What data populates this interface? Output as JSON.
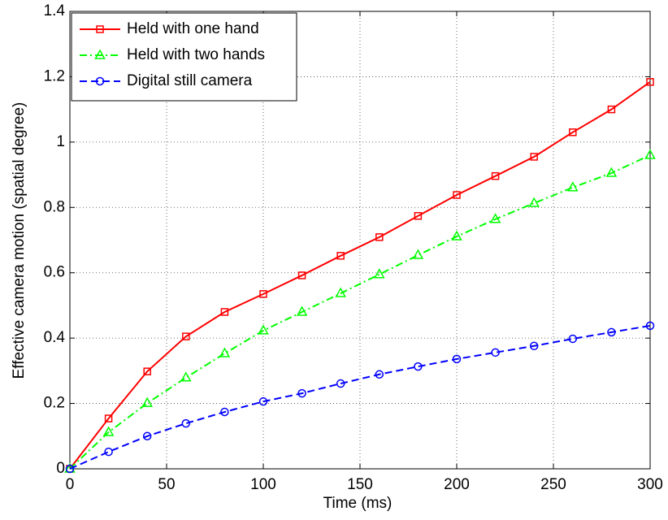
{
  "chart_data": {
    "type": "line",
    "x_label": "Time (ms)",
    "y_label": "Effective camera motion (spatial degree)",
    "x": [
      0,
      20,
      40,
      60,
      80,
      100,
      120,
      140,
      160,
      180,
      200,
      220,
      240,
      260,
      280,
      300
    ],
    "series": [
      {
        "name": "Held with one hand",
        "color": "#ff0000",
        "marker": "square",
        "dash": "solid",
        "values": [
          0,
          0.154,
          0.298,
          0.405,
          0.48,
          0.535,
          0.592,
          0.652,
          0.709,
          0.774,
          0.838,
          0.896,
          0.955,
          1.03,
          1.1,
          1.184
        ]
      },
      {
        "name": "Held with two hands",
        "color": "#00ff00",
        "marker": "triangle",
        "dash": "dashdot",
        "values": [
          0,
          0.112,
          0.201,
          0.279,
          0.353,
          0.423,
          0.48,
          0.537,
          0.595,
          0.654,
          0.711,
          0.764,
          0.813,
          0.861,
          0.905,
          0.96
        ]
      },
      {
        "name": "Digital still camera",
        "color": "#0000ff",
        "marker": "circle",
        "dash": "dashed",
        "values": [
          0,
          0.052,
          0.1,
          0.139,
          0.174,
          0.206,
          0.231,
          0.261,
          0.289,
          0.313,
          0.336,
          0.356,
          0.376,
          0.398,
          0.418,
          0.438
        ]
      }
    ],
    "xlim": [
      0,
      300
    ],
    "xticks": [
      0,
      50,
      100,
      150,
      200,
      250,
      300
    ],
    "ylim": [
      0,
      1.4
    ],
    "yticks": [
      0,
      0.2,
      0.4,
      0.6,
      0.8,
      1,
      1.2,
      1.4
    ],
    "grid": true,
    "legend": "upper-left"
  }
}
